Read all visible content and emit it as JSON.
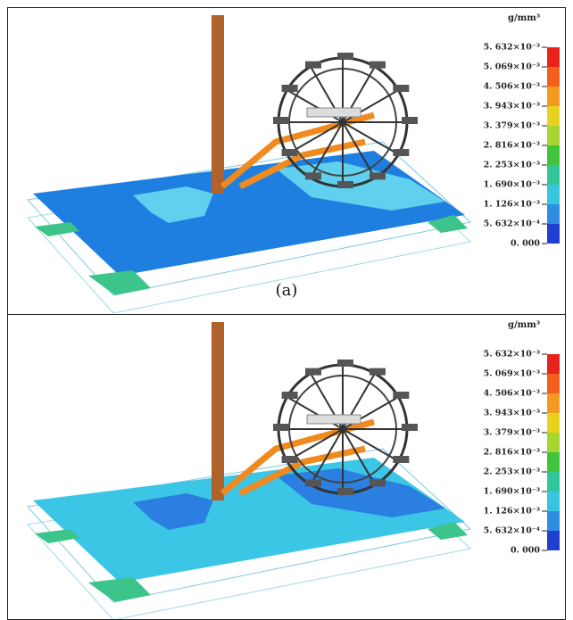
{
  "panels": [
    {
      "caption": "(a)",
      "legend": {
        "unit": "g/mm³",
        "labels": [
          "5. 632×10⁻³",
          "5. 069×10⁻³",
          "4. 506×10⁻³",
          "3. 943×10⁻³",
          "3. 379×10⁻³",
          "2. 816×10⁻³",
          "2. 253×10⁻³",
          "1. 690×10⁻³",
          "1. 126×10⁻³",
          "5. 632×10⁻⁴",
          "0. 000"
        ]
      }
    },
    {
      "legend": {
        "unit": "g/mm³",
        "labels": [
          "5. 632×10⁻³",
          "5. 069×10⁻³",
          "4. 506×10⁻³",
          "3. 943×10⁻³",
          "3. 379×10⁻³",
          "2. 816×10⁻³",
          "2. 253×10⁻³",
          "1. 690×10⁻³",
          "1. 126×10⁻³",
          "5. 632×10⁻⁴",
          "0. 000"
        ]
      }
    }
  ]
}
